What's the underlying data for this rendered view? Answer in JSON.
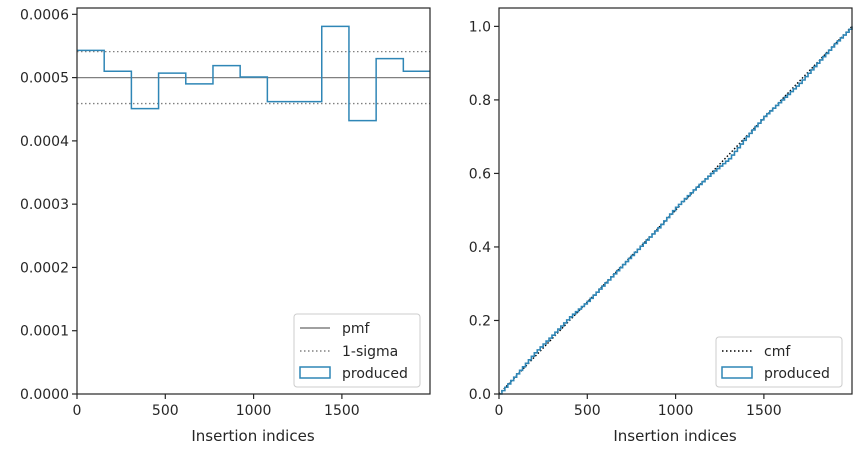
{
  "chart_data": [
    {
      "type": "step",
      "xlabel": "Insertion indices",
      "ylabel": "",
      "xlim": [
        0,
        1999
      ],
      "ylim": [
        0,
        0.00061
      ],
      "x_ticks": [
        0,
        500,
        1000,
        1500
      ],
      "x_tick_labels": [
        "0",
        "500",
        "1000",
        "1500"
      ],
      "y_ticks": [
        0,
        0.0001,
        0.0002,
        0.0003,
        0.0004,
        0.0005,
        0.0006
      ],
      "y_tick_labels": [
        "0.0000",
        "0.0001",
        "0.0002",
        "0.0003",
        "0.0004",
        "0.0005",
        "0.0006"
      ],
      "grid": false,
      "legend_position": "lower-right",
      "reference_lines": [
        {
          "name": "pmf",
          "y": 0.0005,
          "style": "solid",
          "color": "#808080"
        },
        {
          "name": "1-sigma",
          "y": 0.000541,
          "style": "dotted",
          "color": "#808080"
        },
        {
          "name": "1-sigma",
          "y": 0.000459,
          "style": "dotted",
          "color": "#808080"
        }
      ],
      "histogram": {
        "name": "produced",
        "color": "#2f86b6",
        "bin_edges": [
          0,
          154,
          308,
          462,
          616,
          770,
          924,
          1078,
          1232,
          1386,
          1540,
          1694,
          1848,
          1999
        ],
        "values": [
          0.000543,
          0.00051,
          0.000451,
          0.000507,
          0.00049,
          0.000519,
          0.000501,
          0.000462,
          0.000462,
          0.000581,
          0.000432,
          0.00053,
          0.00051
        ]
      },
      "legend": [
        {
          "label": "pmf",
          "style": "solid-line"
        },
        {
          "label": "1-sigma",
          "style": "dotted-line"
        },
        {
          "label": "produced",
          "style": "box"
        }
      ]
    },
    {
      "type": "line",
      "xlabel": "Insertion indices",
      "ylabel": "",
      "xlim": [
        0,
        1999
      ],
      "ylim": [
        0,
        1.05
      ],
      "x_ticks": [
        0,
        500,
        1000,
        1500
      ],
      "x_tick_labels": [
        "0",
        "500",
        "1000",
        "1500"
      ],
      "y_ticks": [
        0,
        0.2,
        0.4,
        0.6,
        0.8,
        1.0
      ],
      "y_tick_labels": [
        "0.0",
        "0.2",
        "0.4",
        "0.6",
        "0.8",
        "1.0"
      ],
      "grid": false,
      "legend_position": "lower-right",
      "series": [
        {
          "name": "cmf",
          "style": "dotted",
          "color": "#000000",
          "x": [
            0,
            1999
          ],
          "y": [
            0,
            1.0
          ]
        },
        {
          "name": "produced",
          "style": "step",
          "color": "#2f86b6",
          "x": [
            0,
            100,
            200,
            300,
            400,
            500,
            600,
            700,
            800,
            900,
            1000,
            1100,
            1200,
            1300,
            1400,
            1500,
            1600,
            1700,
            1800,
            1900,
            1999
          ],
          "y": [
            0,
            0.055,
            0.112,
            0.16,
            0.21,
            0.252,
            0.302,
            0.352,
            0.402,
            0.452,
            0.508,
            0.555,
            0.6,
            0.64,
            0.7,
            0.755,
            0.8,
            0.845,
            0.9,
            0.953,
            1.0
          ]
        }
      ],
      "legend": [
        {
          "label": "cmf",
          "style": "dotted-line"
        },
        {
          "label": "produced",
          "style": "box"
        }
      ]
    }
  ]
}
